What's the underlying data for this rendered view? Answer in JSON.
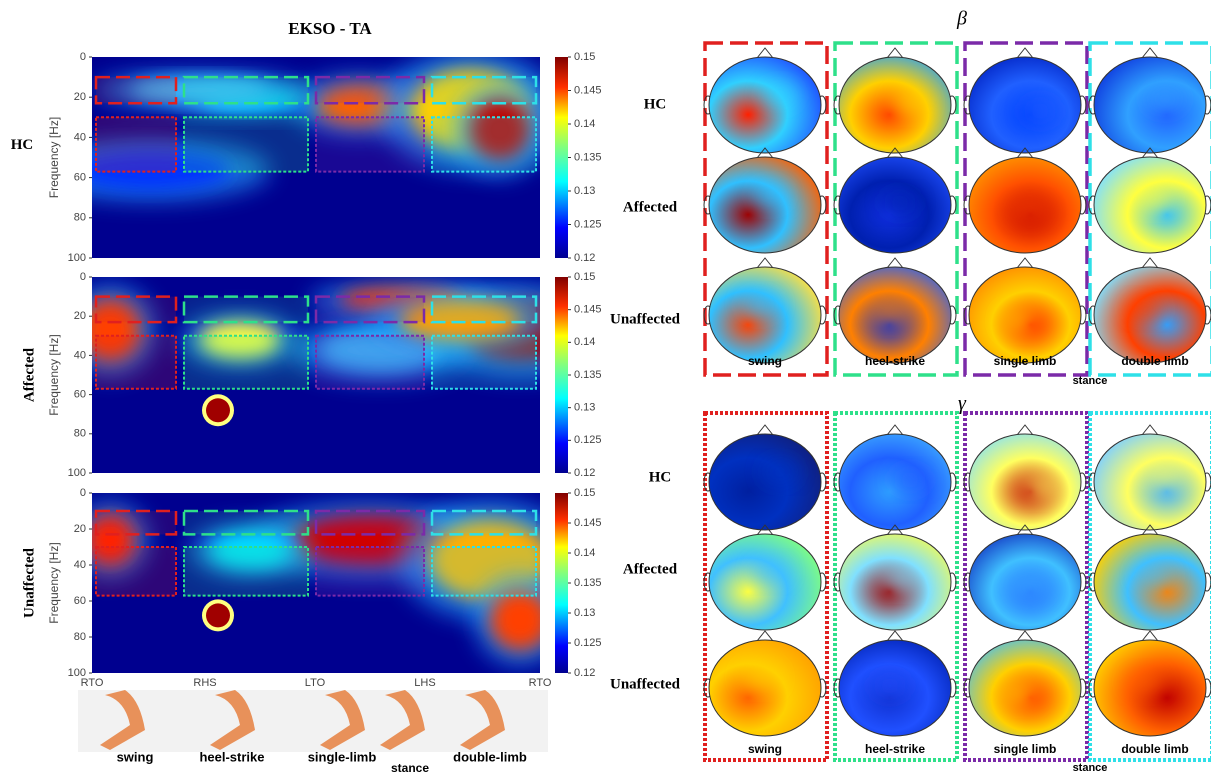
{
  "left": {
    "title": "EKSO - TA",
    "y_axis_label": "Frequency [Hz]",
    "panels": [
      {
        "label": "HC"
      },
      {
        "label": "Affected"
      },
      {
        "label": "Unaffected"
      }
    ],
    "yticks": [
      0,
      20,
      40,
      60,
      80,
      100
    ],
    "colorbar_ticks": [
      0.15,
      0.145,
      0.14,
      0.135,
      0.13,
      0.125,
      0.12
    ],
    "events": [
      "RTO",
      "RHS",
      "LTO",
      "LHS",
      "RTO"
    ],
    "phases": [
      "swing",
      "heel-strike",
      "single-limb",
      "double-limb"
    ],
    "phase_group": "stance"
  },
  "right": {
    "bands": [
      {
        "symbol": "β",
        "rows": [
          "HC",
          "Affected",
          "Unaffected"
        ],
        "phases": [
          "swing",
          "heel-strike",
          "single limb",
          "double limb"
        ],
        "phase_group": "stance"
      },
      {
        "symbol": "γ",
        "rows": [
          "HC",
          "Affected",
          "Unaffected"
        ],
        "phases": [
          "swing",
          "heel-strike",
          "single limb",
          "double limb"
        ],
        "phase_group": "stance"
      }
    ]
  }
}
